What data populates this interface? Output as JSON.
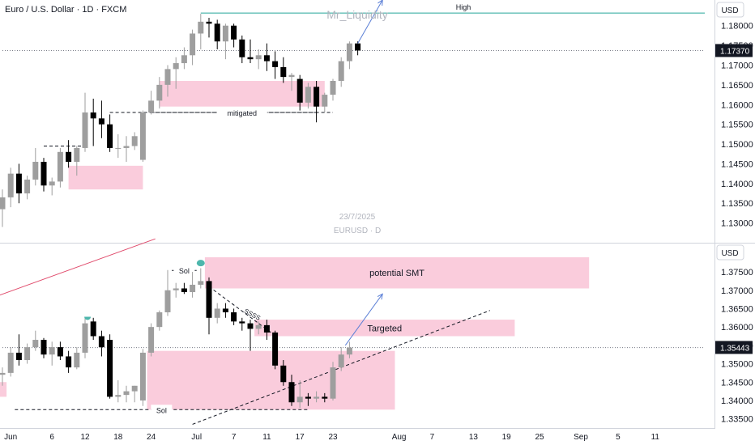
{
  "header": {
    "symbol_title": "Euro / U.S. Dollar · 1D · FXCM",
    "author": "Mr_Liquidity"
  },
  "watermark": {
    "date": "23/7/2025",
    "symbol": "EURUSD · D"
  },
  "colors": {
    "bull_candle": "#9e9e9e",
    "bear_candle": "#000000",
    "zone_fill": "#f8bbd0",
    "high_line": "#26a69a",
    "arrow": "#5b7fd6",
    "trendline_red": "#e04a6b",
    "marker": "#4db6ac"
  },
  "chart_data": [
    {
      "type": "candlestick",
      "pane": "top",
      "currency_label": "USD",
      "ylim": [
        1.125,
        1.1865
      ],
      "y_ticks": [
        "1.18000",
        "1.17500",
        "1.17000",
        "1.16500",
        "1.16000",
        "1.15500",
        "1.15000",
        "1.14500",
        "1.14000",
        "1.13500",
        "1.13000"
      ],
      "last_price": "1.17370",
      "x_day_range": [
        0,
        48
      ],
      "candles": [
        {
          "d": 0,
          "o": 1.1335,
          "h": 1.1385,
          "l": 1.129,
          "c": 1.1365
        },
        {
          "d": 1,
          "o": 1.1365,
          "h": 1.144,
          "l": 1.134,
          "c": 1.1425
        },
        {
          "d": 2,
          "o": 1.1425,
          "h": 1.145,
          "l": 1.135,
          "c": 1.1375
        },
        {
          "d": 3,
          "o": 1.1375,
          "h": 1.142,
          "l": 1.136,
          "c": 1.141
        },
        {
          "d": 4,
          "o": 1.141,
          "h": 1.149,
          "l": 1.1395,
          "c": 1.1455
        },
        {
          "d": 5,
          "o": 1.1455,
          "h": 1.1465,
          "l": 1.138,
          "c": 1.1395
        },
        {
          "d": 6,
          "o": 1.1395,
          "h": 1.1415,
          "l": 1.137,
          "c": 1.1405
        },
        {
          "d": 7,
          "o": 1.1405,
          "h": 1.149,
          "l": 1.139,
          "c": 1.148
        },
        {
          "d": 8,
          "o": 1.148,
          "h": 1.151,
          "l": 1.144,
          "c": 1.1455
        },
        {
          "d": 9,
          "o": 1.1455,
          "h": 1.1495,
          "l": 1.142,
          "c": 1.149
        },
        {
          "d": 10,
          "o": 1.149,
          "h": 1.163,
          "l": 1.148,
          "c": 1.158
        },
        {
          "d": 11,
          "o": 1.158,
          "h": 1.1615,
          "l": 1.1495,
          "c": 1.1565
        },
        {
          "d": 12,
          "o": 1.1565,
          "h": 1.161,
          "l": 1.1515,
          "c": 1.155
        },
        {
          "d": 13,
          "o": 1.155,
          "h": 1.1575,
          "l": 1.148,
          "c": 1.149
        },
        {
          "d": 14,
          "o": 1.149,
          "h": 1.1525,
          "l": 1.1465,
          "c": 1.149
        },
        {
          "d": 15,
          "o": 1.149,
          "h": 1.152,
          "l": 1.1455,
          "c": 1.1495
        },
        {
          "d": 16,
          "o": 1.1495,
          "h": 1.153,
          "l": 1.1485,
          "c": 1.152
        },
        {
          "d": 17,
          "o": 1.146,
          "h": 1.1585,
          "l": 1.1455,
          "c": 1.158
        },
        {
          "d": 18,
          "o": 1.158,
          "h": 1.1635,
          "l": 1.1575,
          "c": 1.161
        },
        {
          "d": 19,
          "o": 1.161,
          "h": 1.167,
          "l": 1.159,
          "c": 1.165
        },
        {
          "d": 20,
          "o": 1.165,
          "h": 1.17,
          "l": 1.162,
          "c": 1.169
        },
        {
          "d": 21,
          "o": 1.169,
          "h": 1.172,
          "l": 1.164,
          "c": 1.1705
        },
        {
          "d": 22,
          "o": 1.1705,
          "h": 1.1745,
          "l": 1.169,
          "c": 1.1725
        },
        {
          "d": 23,
          "o": 1.1725,
          "h": 1.179,
          "l": 1.17,
          "c": 1.178
        },
        {
          "d": 24,
          "o": 1.178,
          "h": 1.183,
          "l": 1.174,
          "c": 1.181
        },
        {
          "d": 25,
          "o": 1.181,
          "h": 1.182,
          "l": 1.177,
          "c": 1.1805
        },
        {
          "d": 26,
          "o": 1.1805,
          "h": 1.1815,
          "l": 1.174,
          "c": 1.176
        },
        {
          "d": 27,
          "o": 1.176,
          "h": 1.1805,
          "l": 1.1715,
          "c": 1.18
        },
        {
          "d": 28,
          "o": 1.18,
          "h": 1.1805,
          "l": 1.1745,
          "c": 1.1765
        },
        {
          "d": 29,
          "o": 1.1765,
          "h": 1.1775,
          "l": 1.1705,
          "c": 1.172
        },
        {
          "d": 30,
          "o": 1.172,
          "h": 1.1765,
          "l": 1.1705,
          "c": 1.1715
        },
        {
          "d": 31,
          "o": 1.1715,
          "h": 1.174,
          "l": 1.169,
          "c": 1.1725
        },
        {
          "d": 32,
          "o": 1.1725,
          "h": 1.1755,
          "l": 1.1685,
          "c": 1.171
        },
        {
          "d": 33,
          "o": 1.171,
          "h": 1.1735,
          "l": 1.1665,
          "c": 1.1695
        },
        {
          "d": 34,
          "o": 1.1695,
          "h": 1.172,
          "l": 1.1655,
          "c": 1.167
        },
        {
          "d": 35,
          "o": 1.167,
          "h": 1.168,
          "l": 1.1635,
          "c": 1.1675
        },
        {
          "d": 36,
          "o": 1.1665,
          "h": 1.1675,
          "l": 1.1585,
          "c": 1.1605
        },
        {
          "d": 37,
          "o": 1.1605,
          "h": 1.1655,
          "l": 1.159,
          "c": 1.1645
        },
        {
          "d": 38,
          "o": 1.1645,
          "h": 1.166,
          "l": 1.1555,
          "c": 1.1595
        },
        {
          "d": 39,
          "o": 1.1595,
          "h": 1.163,
          "l": 1.158,
          "c": 1.1625
        },
        {
          "d": 40,
          "o": 1.1625,
          "h": 1.1665,
          "l": 1.161,
          "c": 1.166
        },
        {
          "d": 41,
          "o": 1.166,
          "h": 1.172,
          "l": 1.1645,
          "c": 1.171
        },
        {
          "d": 42,
          "o": 1.171,
          "h": 1.176,
          "l": 1.169,
          "c": 1.1755
        },
        {
          "d": 43,
          "o": 1.1755,
          "h": 1.176,
          "l": 1.1725,
          "c": 1.1737
        }
      ],
      "zones": [
        {
          "x0": 8,
          "x1": 17,
          "y0": 1.1385,
          "y1": 1.1445
        },
        {
          "x0": 19,
          "x1": 39,
          "y0": 1.1595,
          "y1": 1.166
        }
      ],
      "lines": [
        {
          "kind": "high",
          "x0": 24,
          "x1": 85,
          "y": 1.1832,
          "label": "High"
        },
        {
          "kind": "last",
          "x0": 0,
          "x1": 85,
          "y": 1.1737
        },
        {
          "kind": "dash",
          "x0": 5,
          "x1": 10,
          "y": 1.1495
        },
        {
          "kind": "dash",
          "x0": 13,
          "x1": 38,
          "y": 1.158
        },
        {
          "kind": "dash",
          "x0": 18,
          "x1": 40,
          "y": 1.158,
          "label": "mitigated"
        }
      ],
      "arrows": [
        {
          "x0": 43,
          "y0": 1.1755,
          "x1": 46,
          "y1": 1.1865
        }
      ]
    },
    {
      "type": "candlestick",
      "pane": "bottom",
      "currency_label": "USD",
      "ylim": [
        1.3325,
        1.3825
      ],
      "y_ticks": [
        "1.37500",
        "1.37000",
        "1.36500",
        "1.36000",
        "1.35500",
        "1.35000",
        "1.34500",
        "1.34000",
        "1.33500"
      ],
      "last_price": "1.35443",
      "x_ticks": [
        {
          "d": 1,
          "label": "Jun"
        },
        {
          "d": 6,
          "label": "6"
        },
        {
          "d": 10,
          "label": "12"
        },
        {
          "d": 14,
          "label": "18"
        },
        {
          "d": 18,
          "label": "24"
        },
        {
          "d": 23.5,
          "label": "Jul"
        },
        {
          "d": 28,
          "label": "7"
        },
        {
          "d": 32,
          "label": "11"
        },
        {
          "d": 36,
          "label": "17"
        },
        {
          "d": 40,
          "label": "23"
        },
        {
          "d": 48,
          "label": "Aug"
        },
        {
          "d": 52,
          "label": "7"
        },
        {
          "d": 57,
          "label": "13"
        },
        {
          "d": 61,
          "label": "19"
        },
        {
          "d": 65,
          "label": "25"
        },
        {
          "d": 70,
          "label": "Sep"
        },
        {
          "d": 74.5,
          "label": "5"
        },
        {
          "d": 79,
          "label": "11"
        }
      ],
      "candles": [
        {
          "d": 0,
          "o": 1.347,
          "h": 1.349,
          "l": 1.344,
          "c": 1.3475
        },
        {
          "d": 1,
          "o": 1.3475,
          "h": 1.3545,
          "l": 1.3465,
          "c": 1.353
        },
        {
          "d": 2,
          "o": 1.353,
          "h": 1.358,
          "l": 1.3495,
          "c": 1.351
        },
        {
          "d": 3,
          "o": 1.351,
          "h": 1.3555,
          "l": 1.35,
          "c": 1.3545
        },
        {
          "d": 4,
          "o": 1.3545,
          "h": 1.359,
          "l": 1.3535,
          "c": 1.3565
        },
        {
          "d": 5,
          "o": 1.3565,
          "h": 1.357,
          "l": 1.3515,
          "c": 1.3525
        },
        {
          "d": 6,
          "o": 1.3525,
          "h": 1.356,
          "l": 1.3495,
          "c": 1.3545
        },
        {
          "d": 7,
          "o": 1.3545,
          "h": 1.356,
          "l": 1.351,
          "c": 1.352
        },
        {
          "d": 8,
          "o": 1.352,
          "h": 1.3535,
          "l": 1.3475,
          "c": 1.349
        },
        {
          "d": 9,
          "o": 1.349,
          "h": 1.3545,
          "l": 1.3485,
          "c": 1.353
        },
        {
          "d": 10,
          "o": 1.353,
          "h": 1.3625,
          "l": 1.3515,
          "c": 1.361
        },
        {
          "d": 11,
          "o": 1.3615,
          "h": 1.3625,
          "l": 1.3565,
          "c": 1.3575
        },
        {
          "d": 12,
          "o": 1.3575,
          "h": 1.359,
          "l": 1.352,
          "c": 1.3545
        },
        {
          "d": 13,
          "o": 1.3565,
          "h": 1.358,
          "l": 1.3405,
          "c": 1.341
        },
        {
          "d": 14,
          "o": 1.341,
          "h": 1.3455,
          "l": 1.3395,
          "c": 1.3415
        },
        {
          "d": 15,
          "o": 1.3415,
          "h": 1.344,
          "l": 1.3395,
          "c": 1.3425
        },
        {
          "d": 16,
          "o": 1.3425,
          "h": 1.344,
          "l": 1.3395,
          "c": 1.344
        },
        {
          "d": 17,
          "o": 1.34,
          "h": 1.354,
          "l": 1.3385,
          "c": 1.353
        },
        {
          "d": 18,
          "o": 1.353,
          "h": 1.361,
          "l": 1.352,
          "c": 1.36
        },
        {
          "d": 19,
          "o": 1.36,
          "h": 1.3645,
          "l": 1.359,
          "c": 1.364
        },
        {
          "d": 20,
          "o": 1.364,
          "h": 1.3755,
          "l": 1.363,
          "c": 1.37
        },
        {
          "d": 21,
          "o": 1.37,
          "h": 1.372,
          "l": 1.368,
          "c": 1.3705
        },
        {
          "d": 22,
          "o": 1.3705,
          "h": 1.372,
          "l": 1.369,
          "c": 1.3695
        },
        {
          "d": 23,
          "o": 1.3695,
          "h": 1.375,
          "l": 1.368,
          "c": 1.3715
        },
        {
          "d": 24,
          "o": 1.3715,
          "h": 1.376,
          "l": 1.3705,
          "c": 1.3725
        },
        {
          "d": 25,
          "o": 1.3725,
          "h": 1.3735,
          "l": 1.358,
          "c": 1.3625
        },
        {
          "d": 26,
          "o": 1.3625,
          "h": 1.3665,
          "l": 1.361,
          "c": 1.365
        },
        {
          "d": 27,
          "o": 1.365,
          "h": 1.3665,
          "l": 1.3625,
          "c": 1.364
        },
        {
          "d": 28,
          "o": 1.364,
          "h": 1.365,
          "l": 1.3605,
          "c": 1.3615
        },
        {
          "d": 29,
          "o": 1.3615,
          "h": 1.3625,
          "l": 1.359,
          "c": 1.361
        },
        {
          "d": 30,
          "o": 1.361,
          "h": 1.362,
          "l": 1.3535,
          "c": 1.3595
        },
        {
          "d": 31,
          "o": 1.3595,
          "h": 1.3615,
          "l": 1.358,
          "c": 1.3605
        },
        {
          "d": 32,
          "o": 1.3605,
          "h": 1.362,
          "l": 1.3565,
          "c": 1.3585
        },
        {
          "d": 33,
          "o": 1.3585,
          "h": 1.359,
          "l": 1.3485,
          "c": 1.3495
        },
        {
          "d": 34,
          "o": 1.3495,
          "h": 1.351,
          "l": 1.344,
          "c": 1.345
        },
        {
          "d": 35,
          "o": 1.345,
          "h": 1.347,
          "l": 1.3385,
          "c": 1.3395
        },
        {
          "d": 36,
          "o": 1.3395,
          "h": 1.3455,
          "l": 1.338,
          "c": 1.341
        },
        {
          "d": 37,
          "o": 1.341,
          "h": 1.342,
          "l": 1.3385,
          "c": 1.3405
        },
        {
          "d": 38,
          "o": 1.3405,
          "h": 1.3425,
          "l": 1.3395,
          "c": 1.341
        },
        {
          "d": 39,
          "o": 1.341,
          "h": 1.342,
          "l": 1.3395,
          "c": 1.3405
        },
        {
          "d": 40,
          "o": 1.3405,
          "h": 1.3505,
          "l": 1.34,
          "c": 1.349
        },
        {
          "d": 41,
          "o": 1.349,
          "h": 1.3545,
          "l": 1.348,
          "c": 1.3525
        },
        {
          "d": 42,
          "o": 1.3525,
          "h": 1.356,
          "l": 1.3515,
          "c": 1.3544
        }
      ],
      "zones": [
        {
          "x0": -3,
          "x1": 0.5,
          "y0": 1.341,
          "y1": 1.345,
          "label": ""
        },
        {
          "x0": 17.5,
          "x1": 47.5,
          "y0": 1.3375,
          "y1": 1.3535,
          "label": ""
        },
        {
          "x0": 24.5,
          "x1": 71,
          "y0": 1.3705,
          "y1": 1.379,
          "label": "potential SMT"
        },
        {
          "x0": 30.5,
          "x1": 62,
          "y0": 1.3575,
          "y1": 1.362,
          "label": "Targeted"
        }
      ],
      "lines": [
        {
          "kind": "dash",
          "x0": 1.5,
          "x1": 37,
          "y": 1.3375,
          "label": "Sol"
        },
        {
          "kind": "solid-short",
          "x0": 20.5,
          "x1": 23.5,
          "y": 1.3754,
          "label": "Sol"
        },
        {
          "kind": "last",
          "x0": 0,
          "x1": 85,
          "y": 1.3544
        }
      ],
      "trend_lines": [
        {
          "kind": "red",
          "x0": -3,
          "y0": 1.3665,
          "x1": 18.5,
          "y1": 1.384
        },
        {
          "kind": "dash-up",
          "x0": 23,
          "y0": 1.3335,
          "x1": 59,
          "y1": 1.3645
        },
        {
          "kind": "dash-down",
          "x0": 25,
          "y0": 1.371,
          "x1": 32.5,
          "y1": 1.3585
        }
      ],
      "arrows": [
        {
          "x0": 41.5,
          "y0": 1.355,
          "x1": 46,
          "y1": 1.369
        }
      ],
      "text_annotations": [
        {
          "x": 29.2,
          "y": 1.364,
          "text": "SSSS",
          "rotate": 28
        }
      ],
      "markers": [
        {
          "d": 10.3,
          "y": 1.3628,
          "kind": "cup"
        },
        {
          "d": 24,
          "y": 1.3774,
          "kind": "dot"
        }
      ]
    }
  ]
}
